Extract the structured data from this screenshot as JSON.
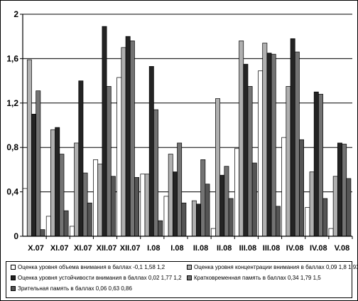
{
  "chart_data": {
    "type": "bar",
    "categories": [
      "X.07",
      "XI.07",
      "XI.07",
      "XII.07",
      "XII.07",
      "I.08",
      "I.08",
      "II.08",
      "II.08",
      "III.08",
      "III.08",
      "IV.08",
      "IV.08",
      "V.08"
    ],
    "series": [
      {
        "name": "Оценка уровня объема внимания в баллах -0,1 1,58 1,2",
        "color": "#ffffff",
        "values": [
          0.43,
          0.18,
          0.09,
          0.69,
          1.43,
          0.56,
          0.36,
          0.0,
          0.07,
          0.79,
          1.49,
          0.89,
          0.26,
          0.07
        ]
      },
      {
        "name": "Оценка уровня концентрации внимания в баллах 0,09 1,8 1,93",
        "color": "#b0b0b0",
        "values": [
          1.59,
          0.96,
          0.84,
          0.65,
          1.7,
          0.56,
          0.74,
          0.32,
          1.24,
          1.76,
          1.74,
          1.35,
          0.58,
          0.54
        ]
      },
      {
        "name": "Оценка уровня устойчивости внимания в баллах 0,02 1,77 1,2",
        "color": "#242424",
        "values": [
          1.1,
          0.98,
          1.4,
          1.89,
          1.8,
          1.53,
          0.58,
          0.29,
          0.55,
          1.55,
          1.65,
          1.78,
          1.3,
          0.84
        ]
      },
      {
        "name": "Кратковременная память в баллах 0,34 1,79 1,5",
        "color": "#737373",
        "values": [
          1.31,
          0.74,
          0.57,
          1.35,
          1.76,
          1.14,
          0.84,
          0.69,
          0.63,
          1.35,
          1.64,
          1.66,
          1.28,
          0.83
        ]
      },
      {
        "name": "Зрительная память в баллах 0,06 0,63 0,86",
        "color": "#555555",
        "values": [
          0.06,
          0.23,
          0.3,
          0.54,
          0.53,
          0.14,
          0.3,
          0.47,
          0.34,
          0.66,
          0.27,
          0.87,
          0.34,
          0.52
        ]
      }
    ],
    "y_ticks": [
      "0",
      "0,4",
      "0,8",
      "1,2",
      "1,6",
      "2"
    ],
    "ylim": [
      0,
      2
    ],
    "grid": true,
    "legend_position": "bottom"
  }
}
